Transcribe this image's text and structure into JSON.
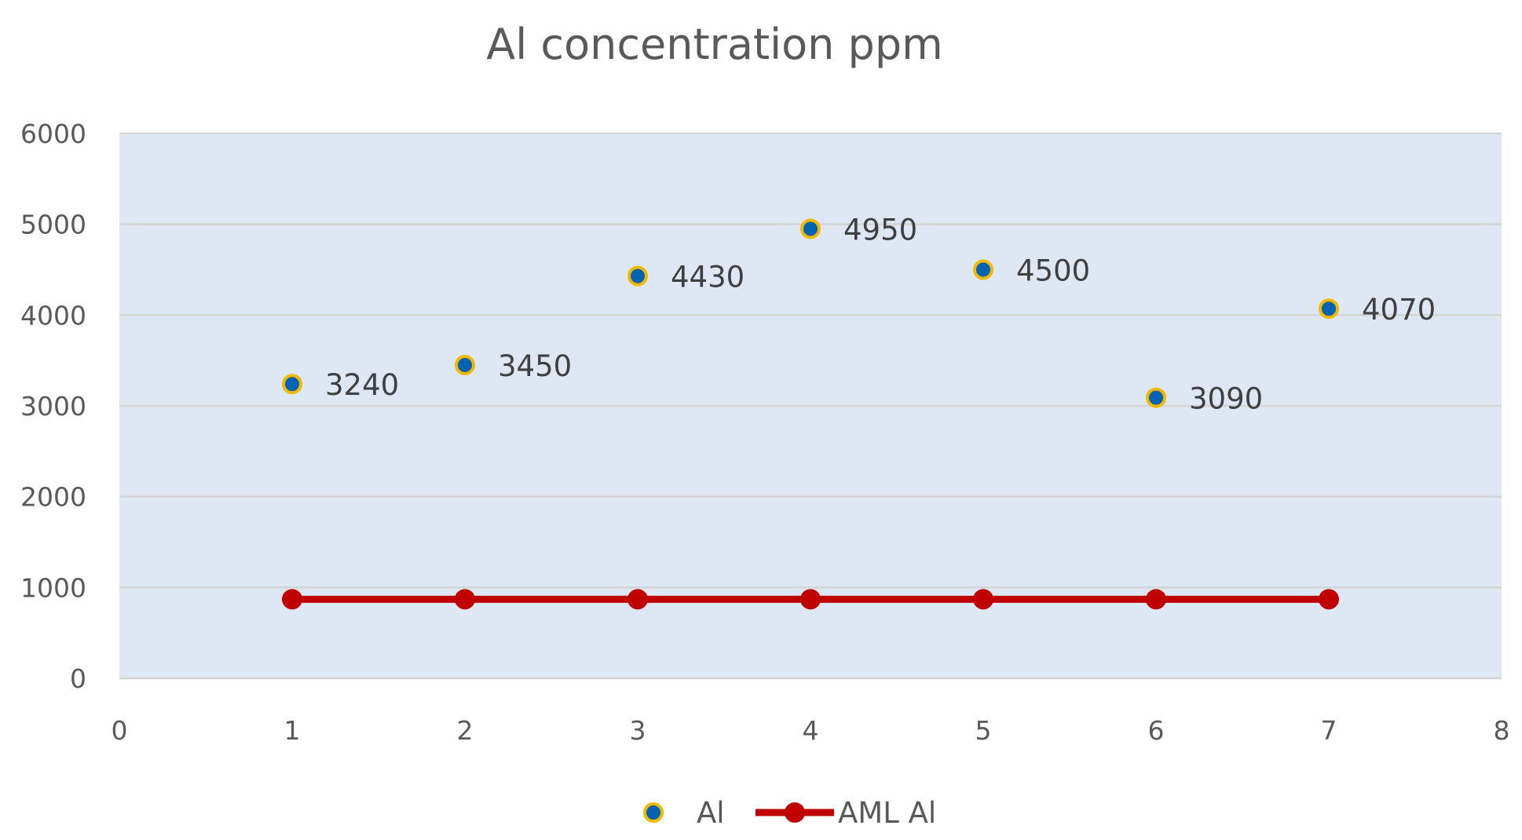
{
  "chart_data": {
    "type": "scatter",
    "title": "Al concentration ppm",
    "xlabel": "",
    "ylabel": "",
    "xlim": [
      0,
      8
    ],
    "ylim": [
      0,
      6000
    ],
    "x_ticks": [
      "0",
      "1",
      "2",
      "3",
      "4",
      "5",
      "6",
      "7",
      "8"
    ],
    "y_ticks": [
      "0",
      "1000",
      "2000",
      "3000",
      "4000",
      "5000",
      "6000"
    ],
    "grid": true,
    "legend_position": "bottom",
    "plot_background": "#dde8f4",
    "series": [
      {
        "name": "Al",
        "kind": "scatter",
        "color": "#0063b1",
        "edge_color": "#f2b800",
        "x": [
          1,
          2,
          3,
          4,
          5,
          6,
          7
        ],
        "y": [
          3240,
          3450,
          4430,
          4950,
          4500,
          3090,
          4070
        ],
        "labels": [
          "3240",
          "3450",
          "4430",
          "4950",
          "4500",
          "3090",
          "4070"
        ]
      },
      {
        "name": "AML Al",
        "kind": "line",
        "color": "#c00000",
        "x": [
          1,
          2,
          3,
          4,
          5,
          6,
          7
        ],
        "y": [
          870,
          870,
          870,
          870,
          870,
          870,
          870
        ]
      }
    ]
  }
}
